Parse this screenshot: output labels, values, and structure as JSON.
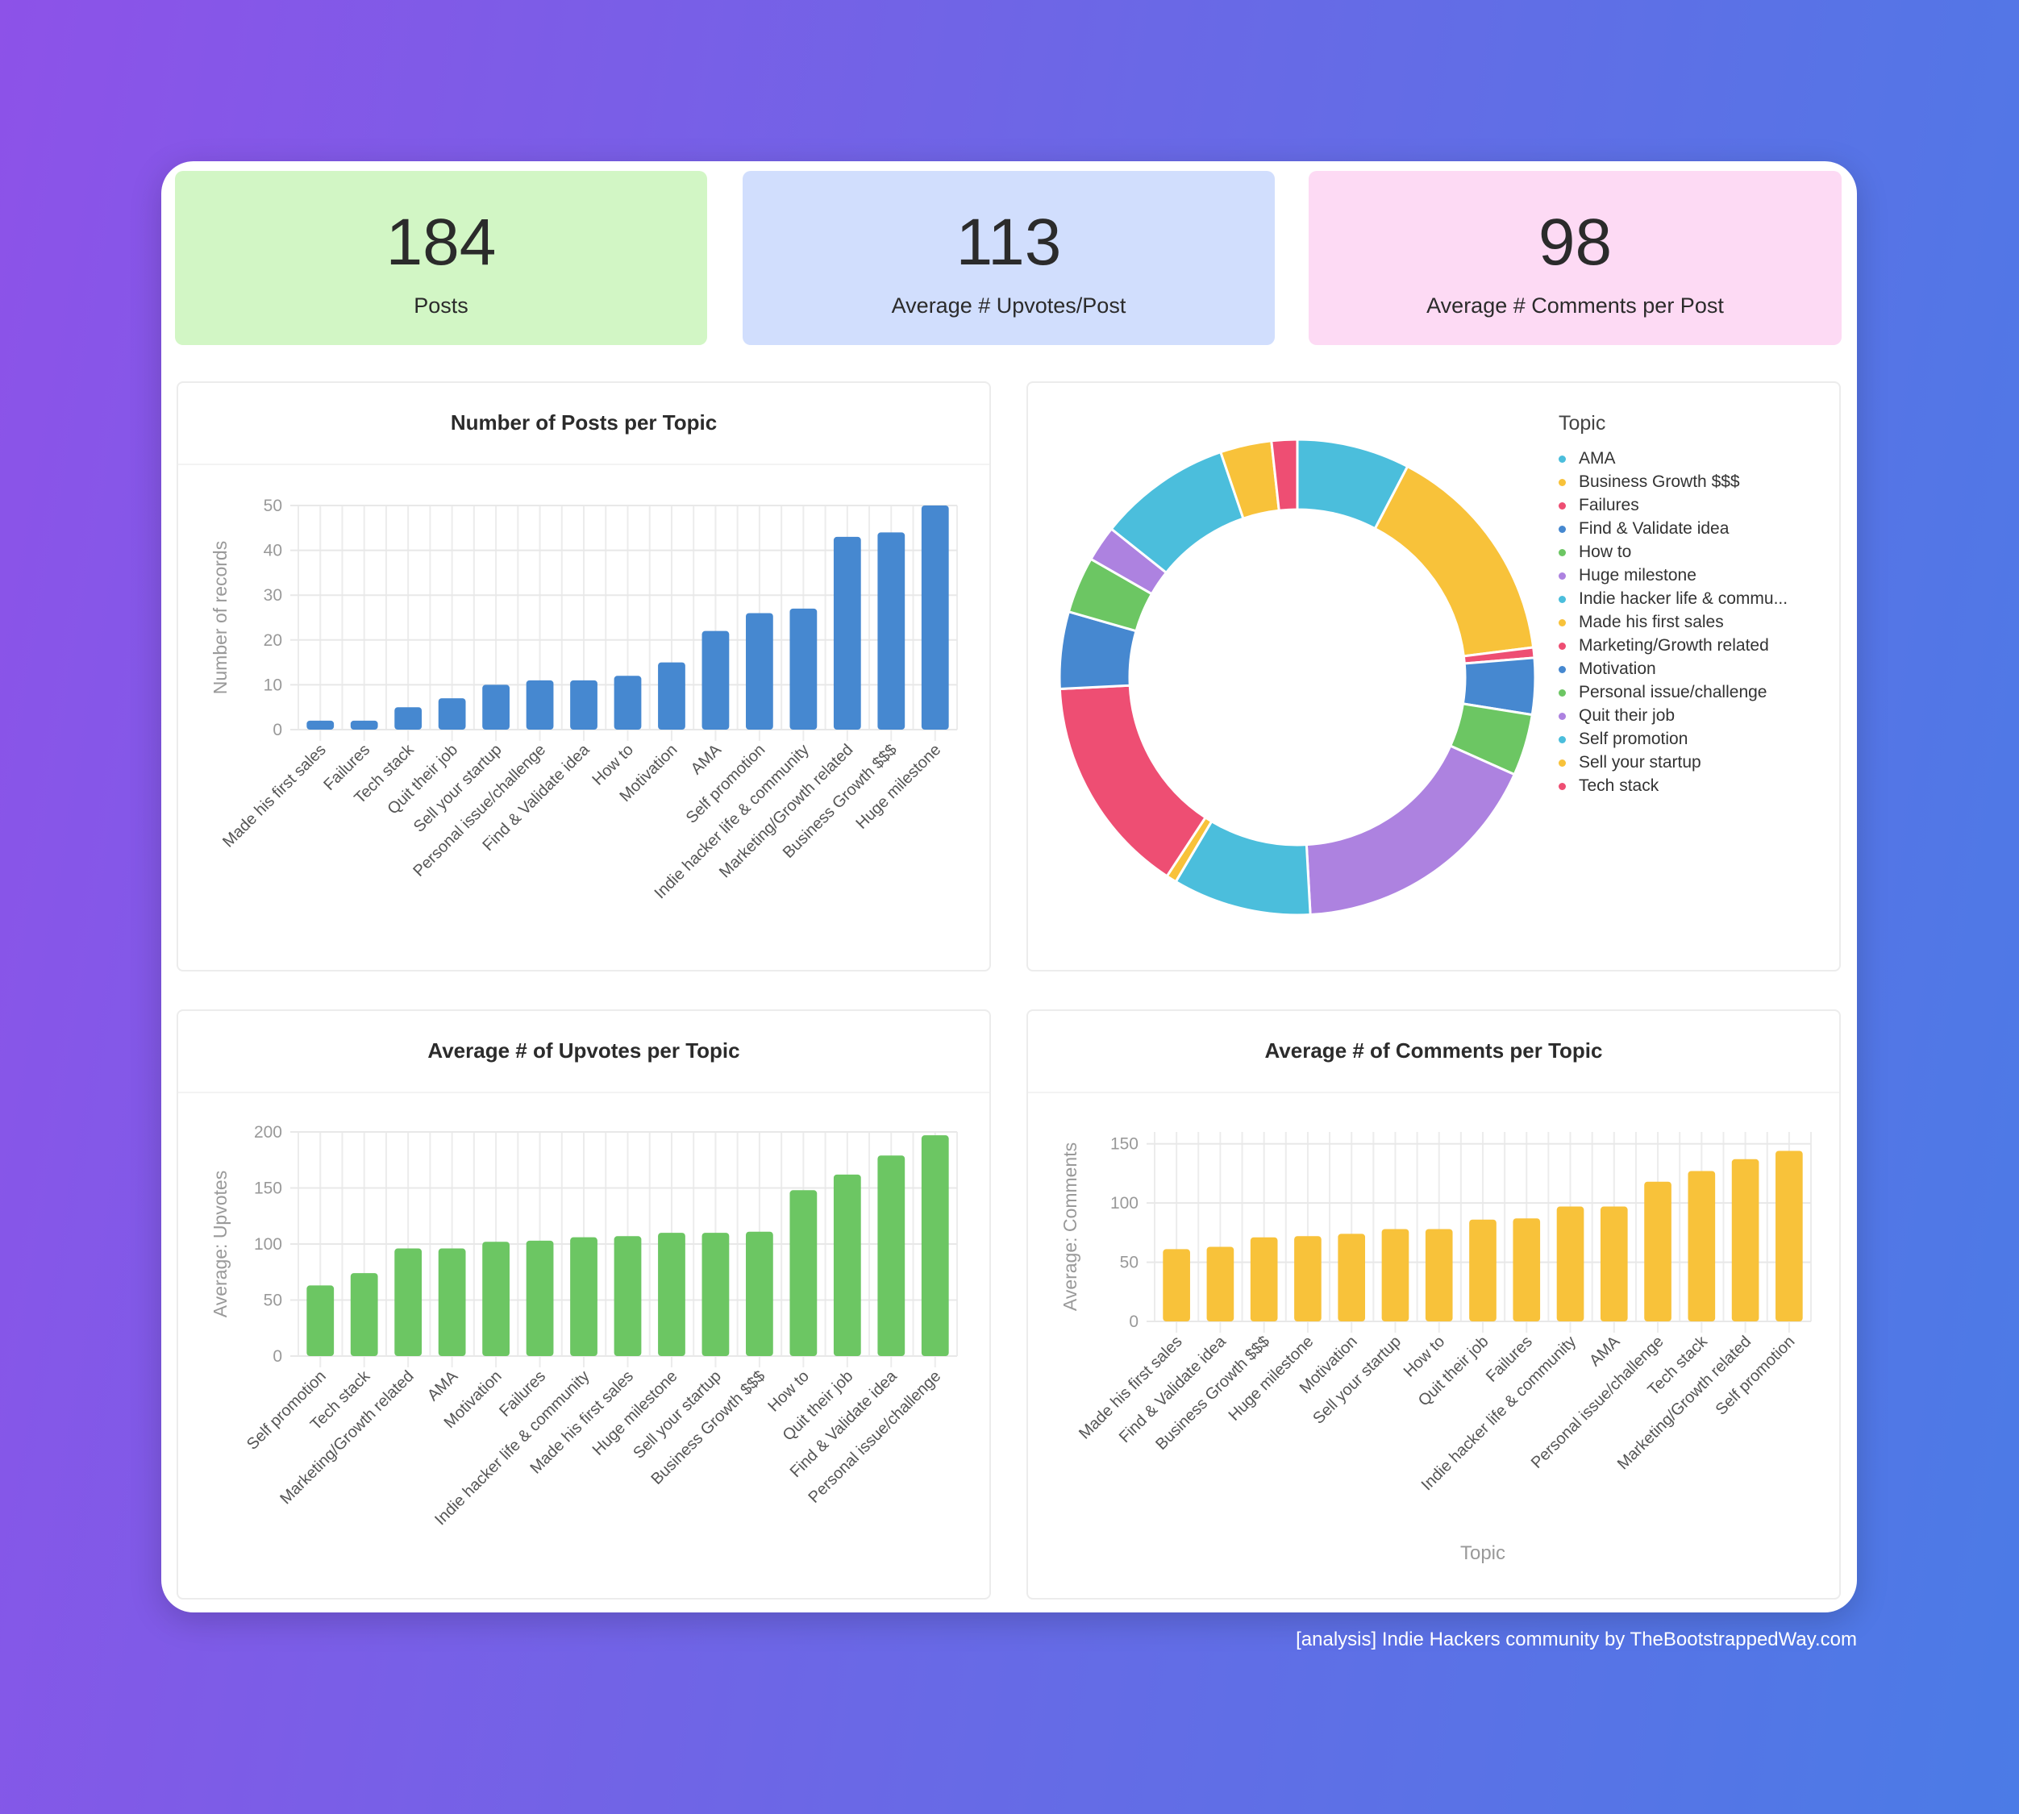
{
  "kpis": [
    {
      "value": "184",
      "label": "Posts",
      "color": "#d2f6c5"
    },
    {
      "value": "113",
      "label": "Average # Upvotes/Post",
      "color": "#d1defd"
    },
    {
      "value": "98",
      "label": "Average # Comments per Post",
      "color": "#fddaf4"
    }
  ],
  "footer": "[analysis] Indie Hackers community by TheBootstrappedWay.com",
  "chart_data": [
    {
      "type": "bar",
      "title": "Number of Posts per Topic",
      "xlabel": "",
      "ylabel": "Number of records",
      "ylim": [
        0,
        50
      ],
      "yticks": [
        0,
        10,
        20,
        30,
        40,
        50
      ],
      "grid": true,
      "color": "#4688d0",
      "categories": [
        "Made his first sales",
        "Failures",
        "Tech stack",
        "Quit their job",
        "Sell your startup",
        "Personal issue/challenge",
        "Find & Validate idea",
        "How to",
        "Motivation",
        "AMA",
        "Self promotion",
        "Indie hacker life & community",
        "Marketing/Growth related",
        "Business Growth $$$",
        "Huge milestone"
      ],
      "values": [
        2,
        2,
        5,
        7,
        10,
        11,
        11,
        12,
        15,
        22,
        26,
        27,
        43,
        44,
        50
      ]
    },
    {
      "type": "pie",
      "donut": true,
      "legend_title": "Topic",
      "legend_position": "right",
      "categories": [
        "AMA",
        "Business Growth $$$",
        "Failures",
        "Find & Validate idea",
        "How to",
        "Huge milestone",
        "Indie hacker life & commu...",
        "Made his first sales",
        "Marketing/Growth related",
        "Motivation",
        "Personal issue/challenge",
        "Quit their job",
        "Self promotion",
        "Sell your startup",
        "Tech stack"
      ],
      "values": [
        22,
        44,
        2,
        11,
        12,
        50,
        27,
        2,
        43,
        15,
        11,
        7,
        26,
        10,
        5
      ],
      "colors": [
        "#4bbedc",
        "#f8c23a",
        "#ee4e73",
        "#4688d0",
        "#6cc663",
        "#ad82e0",
        "#4bbedc",
        "#f8c23a",
        "#ee4e73",
        "#4688d0",
        "#6cc663",
        "#ad82e0",
        "#4bbedc",
        "#f8c23a",
        "#ee4e73"
      ]
    },
    {
      "type": "bar",
      "title": "Average # of Upvotes per Topic",
      "xlabel": "",
      "ylabel": "Average: Upvotes",
      "ylim": [
        0,
        200
      ],
      "yticks": [
        0,
        50,
        100,
        150,
        200
      ],
      "grid": true,
      "color": "#6cc663",
      "categories": [
        "Self promotion",
        "Tech stack",
        "Marketing/Growth related",
        "AMA",
        "Motivation",
        "Failures",
        "Indie hacker life & community",
        "Made his first sales",
        "Huge milestone",
        "Sell your startup",
        "Business Growth $$$",
        "How to",
        "Quit their job",
        "Find & Validate idea",
        "Personal issue/challenge"
      ],
      "values": [
        63,
        74,
        96,
        96,
        102,
        103,
        106,
        107,
        110,
        110,
        111,
        148,
        162,
        179,
        197
      ]
    },
    {
      "type": "bar",
      "title": "Average # of Comments per Topic",
      "xlabel": "Topic",
      "ylabel": "Average: Comments",
      "ylim": [
        0,
        160
      ],
      "yticks": [
        0,
        50,
        100,
        150
      ],
      "grid": true,
      "color": "#f8c23a",
      "categories": [
        "Made his first sales",
        "Find & Validate idea",
        "Business Growth $$$",
        "Huge milestone",
        "Motivation",
        "Sell your startup",
        "How to",
        "Quit their job",
        "Failures",
        "Indie hacker life & community",
        "AMA",
        "Personal issue/challenge",
        "Tech stack",
        "Marketing/Growth related",
        "Self promotion"
      ],
      "values": [
        61,
        63,
        71,
        72,
        74,
        78,
        78,
        86,
        87,
        97,
        97,
        118,
        127,
        137,
        144
      ]
    }
  ]
}
